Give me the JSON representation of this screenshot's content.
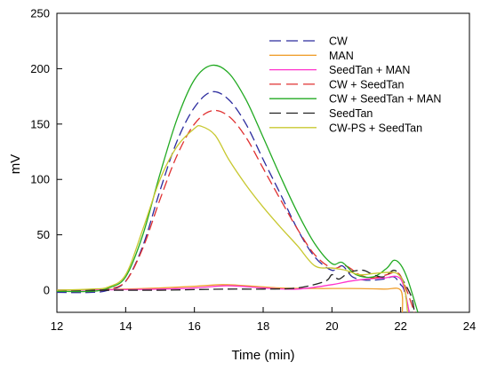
{
  "chart_data": {
    "type": "line",
    "title": "",
    "xlabel": "Time (min)",
    "ylabel": "mV",
    "xlim": [
      12,
      24
    ],
    "ylim": [
      -20,
      250
    ],
    "x_ticks": [
      "12",
      "14",
      "16",
      "18",
      "20",
      "22",
      "24"
    ],
    "y_ticks": [
      "0",
      "50",
      "100",
      "150",
      "200",
      "250"
    ],
    "grid": false,
    "legend_position": "top-right",
    "series": [
      {
        "name": "CW",
        "color": "#2b2b9e",
        "dash": "dashed",
        "points": [
          [
            12,
            -2
          ],
          [
            13,
            -2
          ],
          [
            13.5,
            0
          ],
          [
            14,
            8
          ],
          [
            14.5,
            40
          ],
          [
            15,
            90
          ],
          [
            15.5,
            135
          ],
          [
            16,
            165
          ],
          [
            16.5,
            179
          ],
          [
            17,
            172
          ],
          [
            17.5,
            150
          ],
          [
            18,
            118
          ],
          [
            18.5,
            87
          ],
          [
            19,
            55
          ],
          [
            19.5,
            30
          ],
          [
            20,
            18
          ],
          [
            20.3,
            22
          ],
          [
            20.6,
            12
          ],
          [
            21,
            9
          ],
          [
            21.5,
            10
          ],
          [
            21.8,
            12
          ],
          [
            22,
            5
          ],
          [
            22.1,
            0
          ],
          [
            22.25,
            -20
          ]
        ]
      },
      {
        "name": "MAN",
        "color": "#f0a030",
        "dash": "solid",
        "points": [
          [
            12,
            0
          ],
          [
            14,
            1
          ],
          [
            15,
            2
          ],
          [
            16,
            3.5
          ],
          [
            16.8,
            5
          ],
          [
            17.5,
            4
          ],
          [
            18.5,
            2
          ],
          [
            19.5,
            1.5
          ],
          [
            20.5,
            1.5
          ],
          [
            21.5,
            1
          ],
          [
            22,
            0
          ],
          [
            22.05,
            -20
          ]
        ]
      },
      {
        "name": "SeedTan + MAN",
        "color": "#ff33cc",
        "dash": "solid",
        "points": [
          [
            12,
            0
          ],
          [
            14,
            0.5
          ],
          [
            15,
            1
          ],
          [
            16,
            2
          ],
          [
            17,
            4
          ],
          [
            18,
            2
          ],
          [
            19,
            1
          ],
          [
            20,
            5
          ],
          [
            20.5,
            8
          ],
          [
            21,
            10
          ],
          [
            21.5,
            11
          ],
          [
            22,
            10
          ],
          [
            22.25,
            -20
          ]
        ]
      },
      {
        "name": "CW + SeedTan",
        "color": "#e03030",
        "dash": "dashed",
        "points": [
          [
            12,
            -1
          ],
          [
            13,
            -1
          ],
          [
            13.5,
            1
          ],
          [
            14,
            8
          ],
          [
            14.5,
            38
          ],
          [
            15,
            82
          ],
          [
            15.5,
            122
          ],
          [
            16,
            150
          ],
          [
            16.5,
            162
          ],
          [
            17,
            157
          ],
          [
            17.5,
            138
          ],
          [
            18,
            110
          ],
          [
            18.5,
            82
          ],
          [
            19,
            55
          ],
          [
            19.5,
            32
          ],
          [
            20,
            20
          ],
          [
            20.4,
            22
          ],
          [
            20.8,
            14
          ],
          [
            21.2,
            11
          ],
          [
            21.6,
            14
          ],
          [
            21.9,
            16
          ],
          [
            22.1,
            6
          ],
          [
            22.4,
            -20
          ]
        ]
      },
      {
        "name": "CW + SeedTan + MAN",
        "color": "#22aa22",
        "dash": "solid",
        "points": [
          [
            12,
            -1
          ],
          [
            13,
            -1
          ],
          [
            13.5,
            2
          ],
          [
            14,
            12
          ],
          [
            14.5,
            50
          ],
          [
            15,
            105
          ],
          [
            15.5,
            155
          ],
          [
            16,
            190
          ],
          [
            16.5,
            203
          ],
          [
            17,
            196
          ],
          [
            17.5,
            172
          ],
          [
            18,
            138
          ],
          [
            18.5,
            103
          ],
          [
            19,
            70
          ],
          [
            19.5,
            42
          ],
          [
            20,
            24
          ],
          [
            20.3,
            25
          ],
          [
            20.7,
            14
          ],
          [
            21.2,
            12
          ],
          [
            21.6,
            20
          ],
          [
            21.8,
            27
          ],
          [
            22,
            23
          ],
          [
            22.2,
            10
          ],
          [
            22.5,
            -20
          ]
        ]
      },
      {
        "name": "SeedTan",
        "color": "#222222",
        "dash": "dashed",
        "points": [
          [
            12,
            0
          ],
          [
            14,
            0
          ],
          [
            15,
            0
          ],
          [
            16,
            0.5
          ],
          [
            17,
            1
          ],
          [
            18,
            1
          ],
          [
            19,
            2
          ],
          [
            19.8,
            8
          ],
          [
            20,
            14
          ],
          [
            20.2,
            10
          ],
          [
            20.5,
            16
          ],
          [
            20.9,
            18
          ],
          [
            21.2,
            14
          ],
          [
            21.5,
            12
          ],
          [
            21.8,
            18
          ],
          [
            22,
            12
          ],
          [
            22.3,
            -5
          ],
          [
            22.4,
            -20
          ]
        ]
      },
      {
        "name": "CW-PS + SeedTan",
        "color": "#c8c830",
        "dash": "solid",
        "points": [
          [
            12,
            0
          ],
          [
            13,
            1
          ],
          [
            13.5,
            3
          ],
          [
            14,
            14
          ],
          [
            14.5,
            55
          ],
          [
            15,
            100
          ],
          [
            15.5,
            130
          ],
          [
            16,
            146
          ],
          [
            16.2,
            148
          ],
          [
            16.6,
            140
          ],
          [
            17,
            118
          ],
          [
            17.5,
            95
          ],
          [
            18,
            75
          ],
          [
            18.5,
            57
          ],
          [
            19,
            40
          ],
          [
            19.5,
            22
          ],
          [
            20,
            20
          ],
          [
            20.4,
            18
          ],
          [
            20.8,
            14
          ],
          [
            21.2,
            15
          ],
          [
            21.6,
            16
          ],
          [
            21.9,
            15
          ],
          [
            22.1,
            5
          ],
          [
            22.2,
            -20
          ]
        ]
      }
    ]
  }
}
